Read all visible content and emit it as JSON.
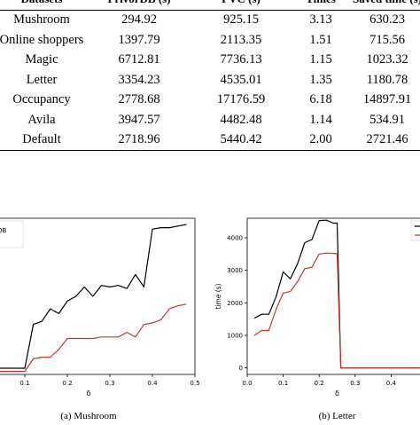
{
  "table": {
    "headers": [
      "Datasets",
      "PrivorDB (s)",
      "PVC (s)",
      "Times",
      "Saved time (s)"
    ],
    "rows": [
      [
        "Mushroom",
        "294.92",
        "925.15",
        "3.13",
        "630.23"
      ],
      [
        "Online shoppers",
        "1397.79",
        "2113.35",
        "1.51",
        "715.56"
      ],
      [
        "Magic",
        "6712.81",
        "7736.13",
        "1.15",
        "1023.32"
      ],
      [
        "Letter",
        "3354.23",
        "4535.01",
        "1.35",
        "1180.78"
      ],
      [
        "Occupancy",
        "2778.68",
        "17176.59",
        "6.18",
        "14897.91"
      ],
      [
        "Avila",
        "3947.57",
        "4482.48",
        "1.14",
        "534.91"
      ],
      [
        "Default",
        "2718.96",
        "5440.42",
        "2.00",
        "2721.46"
      ]
    ]
  },
  "colors": {
    "black_series": "#000000",
    "red_series": "#c0392b",
    "axis": "#000000"
  },
  "chart_data": [
    {
      "type": "line",
      "caption": "(a) Mushroom",
      "xlabel": "δ",
      "ylabel": "",
      "legend_entry": "orDB",
      "legend_placement": "top-left",
      "xlim": [
        0,
        0.5
      ],
      "x_ticks": [
        "0.1",
        "0.2",
        "0.3",
        "0.4",
        "0.5"
      ],
      "x_tick_values": [
        0.1,
        0.2,
        0.3,
        0.4,
        0.5
      ],
      "ylim": [
        0,
        1000
      ],
      "series": [
        {
          "color": "black",
          "x": [
            0.02,
            0.04,
            0.06,
            0.08,
            0.1,
            0.12,
            0.14,
            0.16,
            0.18,
            0.2,
            0.22,
            0.24,
            0.26,
            0.28,
            0.3,
            0.32,
            0.34,
            0.36,
            0.38,
            0.4,
            0.42,
            0.44,
            0.46,
            0.48
          ],
          "y": [
            40,
            40,
            40,
            40,
            40,
            320,
            340,
            420,
            390,
            470,
            500,
            560,
            500,
            570,
            560,
            570,
            550,
            640,
            560,
            930,
            940,
            940,
            950,
            960
          ]
        },
        {
          "color": "red",
          "x": [
            0.02,
            0.04,
            0.06,
            0.08,
            0.1,
            0.12,
            0.14,
            0.16,
            0.18,
            0.2,
            0.22,
            0.24,
            0.26,
            0.28,
            0.3,
            0.32,
            0.34,
            0.36,
            0.38,
            0.4,
            0.42,
            0.44,
            0.46,
            0.48
          ],
          "y": [
            20,
            20,
            20,
            20,
            20,
            100,
            110,
            110,
            160,
            230,
            230,
            230,
            230,
            240,
            240,
            240,
            270,
            240,
            320,
            330,
            350,
            420,
            440,
            450
          ]
        }
      ]
    },
    {
      "type": "line",
      "caption": "(b) Letter",
      "xlabel": "δ",
      "ylabel": "time (s)",
      "legend_placement": "top-right",
      "xlim": [
        0,
        0.5
      ],
      "x_ticks": [
        "0.0",
        "0.1",
        "0.2",
        "0.3",
        "0.4"
      ],
      "x_tick_values": [
        0.0,
        0.1,
        0.2,
        0.3,
        0.4
      ],
      "ylim": [
        -200,
        4600
      ],
      "y_ticks": [
        "0",
        "1000",
        "2000",
        "3000",
        "4000"
      ],
      "y_tick_values": [
        0,
        1000,
        2000,
        3000,
        4000
      ],
      "series": [
        {
          "color": "black",
          "x": [
            0.02,
            0.04,
            0.06,
            0.08,
            0.1,
            0.12,
            0.14,
            0.16,
            0.18,
            0.2,
            0.22,
            0.24,
            0.25,
            0.26,
            0.28,
            0.3,
            0.32,
            0.34,
            0.36,
            0.38,
            0.4,
            0.42,
            0.44,
            0.46,
            0.48
          ],
          "y": [
            1530,
            1650,
            1650,
            2180,
            2950,
            2740,
            3200,
            3850,
            3950,
            4530,
            4540,
            4450,
            4450,
            0,
            0,
            0,
            0,
            0,
            0,
            0,
            0,
            0,
            0,
            0,
            0
          ]
        },
        {
          "color": "red",
          "x": [
            0.02,
            0.04,
            0.06,
            0.08,
            0.1,
            0.12,
            0.14,
            0.16,
            0.18,
            0.2,
            0.22,
            0.24,
            0.25,
            0.26,
            0.28,
            0.3,
            0.32,
            0.34,
            0.36,
            0.38,
            0.4,
            0.42,
            0.44,
            0.46,
            0.48
          ],
          "y": [
            1000,
            1150,
            1150,
            1800,
            2300,
            2350,
            2650,
            3050,
            3100,
            3500,
            3530,
            3520,
            3510,
            0,
            0,
            0,
            0,
            0,
            0,
            0,
            0,
            0,
            0,
            0,
            0
          ]
        }
      ]
    }
  ]
}
